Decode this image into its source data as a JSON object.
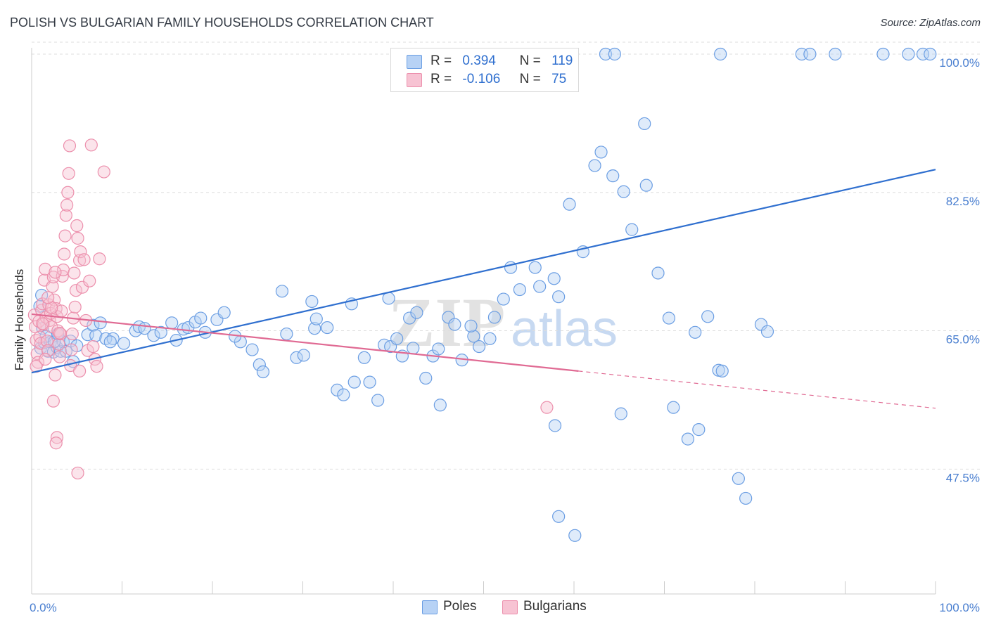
{
  "title": "POLISH VS BULGARIAN FAMILY HOUSEHOLDS CORRELATION CHART",
  "source": "Source: ZipAtlas.com",
  "watermark": {
    "zip": "ZIP",
    "atlas": "atlas"
  },
  "legend_top": {
    "rows": [
      {
        "r_label": "R =",
        "r_value": "0.394",
        "n_label": "N =",
        "n_value": "119"
      },
      {
        "r_label": "R =",
        "r_value": "-0.106",
        "n_label": "N =",
        "n_value": "75"
      }
    ]
  },
  "legend_bottom": {
    "items": [
      "Poles",
      "Bulgarians"
    ]
  },
  "colors": {
    "poles_fill": "#b7d2f5",
    "poles_stroke": "#6b9ee3",
    "poles_line": "#2f6fcf",
    "bulgarians_fill": "#f7c3d3",
    "bulgarians_stroke": "#ec8fac",
    "bulgarians_line": "#e06a93",
    "grid": "#dddddd",
    "tick_label": "#4a7fd0"
  },
  "chart_data": {
    "type": "scatter",
    "title": "POLISH VS BULGARIAN FAMILY HOUSEHOLDS CORRELATION CHART",
    "xlabel": "",
    "ylabel": "Family Households",
    "xlim": [
      0,
      100
    ],
    "ylim": [
      31.7,
      100.8
    ],
    "x_tick_labels": [
      {
        "value": 0,
        "label": "0.0%"
      },
      {
        "value": 100,
        "label": "100.0%"
      }
    ],
    "y_tick_labels": [
      {
        "value": 100,
        "label": "100.0%"
      },
      {
        "value": 82.5,
        "label": "82.5%"
      },
      {
        "value": 65,
        "label": "65.0%"
      },
      {
        "value": 47.5,
        "label": "47.5%"
      }
    ],
    "x_minor_ticks": [
      0,
      10,
      20,
      30,
      40,
      50,
      60,
      70,
      80,
      90,
      100
    ],
    "grid": true,
    "series": [
      {
        "name": "Poles",
        "r": 0.394,
        "n": 119,
        "trend": {
          "x0": 0,
          "y0": 59.7,
          "x1": 100,
          "y1": 85.4,
          "dashed_from": null
        },
        "points": [
          [
            1.0,
            62.8
          ],
          [
            1.4,
            63.5
          ],
          [
            1.8,
            62.4
          ],
          [
            2.1,
            63.6
          ],
          [
            2.4,
            62.3
          ],
          [
            2.8,
            62.9
          ],
          [
            3.2,
            62.4
          ],
          [
            3.5,
            63.6
          ],
          [
            1.1,
            69.5
          ],
          [
            0.9,
            68.1
          ],
          [
            1.2,
            65.3
          ],
          [
            1.6,
            64.3
          ],
          [
            2.5,
            63.6
          ],
          [
            2.9,
            64.6
          ],
          [
            3.8,
            62.4
          ],
          [
            4.3,
            63.7
          ],
          [
            5.0,
            63.1
          ],
          [
            4.6,
            61.1
          ],
          [
            6.2,
            64.5
          ],
          [
            6.8,
            65.7
          ],
          [
            7.1,
            64.4
          ],
          [
            7.6,
            66.0
          ],
          [
            8.2,
            64.0
          ],
          [
            9.0,
            64.0
          ],
          [
            8.7,
            63.6
          ],
          [
            10.2,
            63.4
          ],
          [
            11.5,
            65.0
          ],
          [
            11.9,
            65.5
          ],
          [
            12.5,
            65.3
          ],
          [
            13.5,
            64.4
          ],
          [
            14.3,
            64.8
          ],
          [
            15.5,
            66.0
          ],
          [
            16.0,
            63.8
          ],
          [
            16.8,
            65.2
          ],
          [
            17.3,
            65.4
          ],
          [
            18.1,
            66.1
          ],
          [
            18.7,
            66.6
          ],
          [
            19.2,
            64.8
          ],
          [
            20.5,
            66.4
          ],
          [
            21.3,
            67.3
          ],
          [
            23.1,
            63.6
          ],
          [
            24.4,
            62.6
          ],
          [
            25.2,
            60.7
          ],
          [
            25.6,
            59.8
          ],
          [
            28.2,
            64.6
          ],
          [
            29.3,
            61.6
          ],
          [
            30.1,
            61.9
          ],
          [
            31.3,
            65.3
          ],
          [
            31.5,
            66.5
          ],
          [
            31.0,
            68.7
          ],
          [
            32.7,
            65.4
          ],
          [
            33.8,
            57.5
          ],
          [
            34.5,
            56.9
          ],
          [
            35.7,
            58.5
          ],
          [
            36.8,
            61.6
          ],
          [
            37.4,
            58.5
          ],
          [
            38.3,
            56.2
          ],
          [
            39.0,
            63.2
          ],
          [
            39.7,
            63.0
          ],
          [
            40.4,
            64.0
          ],
          [
            41.0,
            61.8
          ],
          [
            41.8,
            66.6
          ],
          [
            42.2,
            62.8
          ],
          [
            43.6,
            59.0
          ],
          [
            44.4,
            61.8
          ],
          [
            45.2,
            55.6
          ],
          [
            46.1,
            66.7
          ],
          [
            46.8,
            65.8
          ],
          [
            47.6,
            61.3
          ],
          [
            48.9,
            64.3
          ],
          [
            49.5,
            63.0
          ],
          [
            50.7,
            64.0
          ],
          [
            51.2,
            66.7
          ],
          [
            52.2,
            69.0
          ],
          [
            53.0,
            73.0
          ],
          [
            54.0,
            70.2
          ],
          [
            55.7,
            73.0
          ],
          [
            56.2,
            70.6
          ],
          [
            57.8,
            71.6
          ],
          [
            58.3,
            69.3
          ],
          [
            59.5,
            81.0
          ],
          [
            61.0,
            75.0
          ],
          [
            62.3,
            85.9
          ],
          [
            63.0,
            87.6
          ],
          [
            64.3,
            84.6
          ],
          [
            65.5,
            82.6
          ],
          [
            66.4,
            77.8
          ],
          [
            67.8,
            91.2
          ],
          [
            68.0,
            83.4
          ],
          [
            69.3,
            72.3
          ],
          [
            70.5,
            66.6
          ],
          [
            71.0,
            55.3
          ],
          [
            72.6,
            51.3
          ],
          [
            73.4,
            64.8
          ],
          [
            74.8,
            66.8
          ],
          [
            76.0,
            60.0
          ],
          [
            78.2,
            46.3
          ],
          [
            79.0,
            43.8
          ],
          [
            80.7,
            65.8
          ],
          [
            81.4,
            64.9
          ],
          [
            57.9,
            53.0
          ],
          [
            58.3,
            41.5
          ],
          [
            60.1,
            39.1
          ],
          [
            63.5,
            100.0
          ],
          [
            64.5,
            100.0
          ],
          [
            76.2,
            100.0
          ],
          [
            85.2,
            100.0
          ],
          [
            86.1,
            100.0
          ],
          [
            94.2,
            100.0
          ],
          [
            97.0,
            100.0
          ],
          [
            98.6,
            100.0
          ],
          [
            99.4,
            100.0
          ],
          [
            88.9,
            100.0
          ],
          [
            73.8,
            52.5
          ],
          [
            76.4,
            59.9
          ],
          [
            65.2,
            54.5
          ],
          [
            48.6,
            65.6
          ],
          [
            42.6,
            67.3
          ],
          [
            39.5,
            69.1
          ],
          [
            35.4,
            68.4
          ],
          [
            45.0,
            62.7
          ],
          [
            22.5,
            64.3
          ],
          [
            27.7,
            70.0
          ]
        ]
      },
      {
        "name": "Bulgarians",
        "r": -0.106,
        "n": 75,
        "trend": {
          "x0": 0,
          "y0": 67.1,
          "x1": 100,
          "y1": 55.2,
          "dashed_from": 60.5
        },
        "points": [
          [
            0.3,
            67.0
          ],
          [
            0.4,
            65.5
          ],
          [
            0.5,
            63.8
          ],
          [
            0.6,
            62.1
          ],
          [
            0.7,
            61.0
          ],
          [
            0.5,
            60.5
          ],
          [
            0.8,
            66.2
          ],
          [
            0.9,
            64.2
          ],
          [
            1.0,
            63.4
          ],
          [
            1.1,
            67.6
          ],
          [
            1.2,
            68.4
          ],
          [
            1.3,
            65.8
          ],
          [
            1.4,
            71.4
          ],
          [
            1.5,
            72.8
          ],
          [
            1.6,
            66.7
          ],
          [
            1.7,
            63.7
          ],
          [
            1.8,
            62.5
          ],
          [
            1.9,
            68.3
          ],
          [
            2.0,
            66.3
          ],
          [
            2.1,
            67.2
          ],
          [
            2.2,
            65.5
          ],
          [
            2.3,
            70.6
          ],
          [
            2.4,
            71.8
          ],
          [
            2.5,
            68.9
          ],
          [
            2.6,
            59.4
          ],
          [
            2.7,
            67.8
          ],
          [
            2.8,
            66.8
          ],
          [
            2.9,
            65.0
          ],
          [
            3.0,
            63.3
          ],
          [
            3.1,
            61.7
          ],
          [
            3.2,
            64.6
          ],
          [
            3.3,
            67.5
          ],
          [
            3.4,
            71.9
          ],
          [
            3.5,
            72.7
          ],
          [
            3.6,
            74.7
          ],
          [
            3.7,
            77.0
          ],
          [
            3.8,
            79.6
          ],
          [
            3.9,
            80.9
          ],
          [
            4.0,
            82.5
          ],
          [
            4.1,
            84.9
          ],
          [
            4.2,
            88.4
          ],
          [
            4.3,
            60.6
          ],
          [
            4.4,
            62.6
          ],
          [
            4.5,
            64.6
          ],
          [
            4.6,
            66.6
          ],
          [
            4.7,
            72.3
          ],
          [
            4.8,
            68.0
          ],
          [
            4.9,
            70.1
          ],
          [
            5.0,
            78.3
          ],
          [
            5.1,
            76.7
          ],
          [
            5.3,
            73.9
          ],
          [
            5.4,
            75.0
          ],
          [
            5.6,
            70.5
          ],
          [
            5.8,
            74.0
          ],
          [
            6.0,
            66.3
          ],
          [
            6.2,
            62.5
          ],
          [
            6.4,
            71.3
          ],
          [
            6.6,
            88.5
          ],
          [
            6.8,
            63.0
          ],
          [
            7.0,
            61.4
          ],
          [
            7.2,
            60.5
          ],
          [
            7.5,
            74.1
          ],
          [
            8.0,
            85.1
          ],
          [
            2.4,
            56.1
          ],
          [
            2.8,
            51.5
          ],
          [
            2.7,
            50.8
          ],
          [
            5.1,
            47.0
          ],
          [
            5.3,
            59.9
          ],
          [
            1.2,
            65.9
          ],
          [
            1.5,
            61.4
          ],
          [
            2.2,
            67.9
          ],
          [
            3.1,
            64.7
          ],
          [
            1.8,
            69.2
          ],
          [
            2.6,
            72.4
          ],
          [
            57.0,
            55.3
          ]
        ]
      }
    ]
  }
}
